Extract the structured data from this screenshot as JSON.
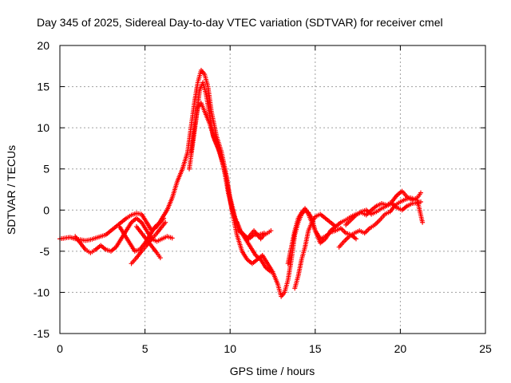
{
  "chart_data": {
    "type": "scatter",
    "title": "Day 345 of 2025, Sidereal Day-to-day VTEC variation (SDTVAR) for receiver cmel",
    "xlabel": "GPS time / hours",
    "ylabel": "SDTVAR / TECUs",
    "xlim": [
      0,
      25
    ],
    "ylim": [
      -15,
      20
    ],
    "xticks": [
      0,
      5,
      10,
      15,
      20,
      25
    ],
    "yticks": [
      -15,
      -10,
      -5,
      0,
      5,
      10,
      15,
      20
    ],
    "grid": true,
    "marker": "+",
    "color": "#ff0000",
    "series": [
      {
        "name": "s1",
        "x": [
          0.0,
          0.3,
          0.6,
          0.9,
          1.2,
          1.5,
          1.8,
          2.1,
          2.4,
          2.7,
          3.0,
          3.3,
          3.6,
          3.9,
          4.2,
          4.5,
          4.8,
          5.1,
          5.4,
          5.7,
          6.0,
          6.3,
          6.6,
          6.9,
          7.2,
          7.5,
          7.7,
          7.9,
          8.1,
          8.3,
          8.5,
          8.7,
          8.9,
          9.2,
          9.5,
          9.8,
          10.1,
          10.4,
          10.7,
          11.0,
          11.3,
          11.6,
          11.9,
          12.2,
          12.5,
          12.8,
          13.0,
          13.2,
          13.4,
          13.6,
          13.8,
          14.0,
          14.2,
          14.4,
          14.6,
          14.8,
          15.0,
          15.3,
          15.6,
          15.9,
          16.2,
          16.5,
          16.8,
          17.1,
          17.4,
          17.7,
          18.0,
          18.3,
          18.6,
          18.9,
          19.2,
          19.5,
          19.8,
          20.1,
          20.4,
          20.7,
          21.0,
          21.2
        ],
        "y": [
          -3.5,
          -3.4,
          -3.3,
          -3.5,
          -3.6,
          -3.7,
          -3.6,
          -3.4,
          -3.2,
          -3.0,
          -2.5,
          -2.0,
          -1.5,
          -1.0,
          -0.6,
          -0.4,
          -0.5,
          -1.5,
          -2.5,
          -2.0,
          -1.0,
          0.0,
          1.5,
          3.5,
          5.0,
          7.0,
          10.0,
          13.0,
          15.5,
          17.0,
          16.5,
          15.0,
          12.0,
          9.0,
          7.0,
          4.0,
          0.0,
          -3.0,
          -5.0,
          -6.0,
          -6.5,
          -6.0,
          -5.5,
          -6.5,
          -7.5,
          -9.0,
          -10.5,
          -10.0,
          -8.5,
          -6.0,
          -3.0,
          -1.5,
          -0.5,
          0.0,
          -0.3,
          -1.0,
          -2.5,
          -4.0,
          -3.5,
          -2.5,
          -2.0,
          -1.5,
          -1.2,
          -0.8,
          -0.5,
          -0.3,
          -0.6,
          0.0,
          0.5,
          0.8,
          0.6,
          1.0,
          1.8,
          2.3,
          1.6,
          1.2,
          1.5,
          2.1
        ]
      },
      {
        "name": "s2",
        "x": [
          0.9,
          1.2,
          1.5,
          1.8,
          2.1,
          2.4,
          2.7,
          3.0,
          3.3,
          3.6,
          3.9,
          4.2,
          4.5,
          4.8,
          5.1,
          5.4,
          5.7,
          6.0,
          6.3,
          6.6
        ],
        "y": [
          -3.2,
          -4.0,
          -4.8,
          -5.2,
          -4.8,
          -4.3,
          -4.8,
          -5.0,
          -4.5,
          -3.5,
          -2.5,
          -1.5,
          -1.0,
          -1.5,
          -2.5,
          -3.5,
          -3.8,
          -3.5,
          -3.2,
          -3.4
        ]
      },
      {
        "name": "s3",
        "x": [
          3.5,
          3.8,
          4.1,
          4.4,
          4.7,
          5.0,
          5.3,
          5.6,
          5.9,
          6.1
        ],
        "y": [
          -2.0,
          -3.0,
          -4.0,
          -5.0,
          -4.8,
          -4.0,
          -3.0,
          -2.0,
          -1.5,
          -1.0
        ]
      },
      {
        "name": "s4",
        "x": [
          4.2,
          4.5,
          4.8,
          5.1,
          5.4,
          5.7,
          6.0,
          6.2
        ],
        "y": [
          -6.5,
          -5.8,
          -5.0,
          -4.3,
          -3.5,
          -2.8,
          -2.0,
          -1.5
        ]
      },
      {
        "name": "s5",
        "x": [
          4.5,
          4.8,
          5.1,
          5.4,
          5.7,
          5.9
        ],
        "y": [
          -2.0,
          -2.8,
          -3.6,
          -4.4,
          -5.2,
          -5.8
        ]
      },
      {
        "name": "s6",
        "x": [
          7.7,
          7.9,
          8.1,
          8.3,
          8.5,
          8.8,
          9.1,
          9.4,
          9.7,
          10.0,
          10.3,
          10.6,
          10.9,
          11.2,
          11.5,
          11.8,
          12.1,
          12.4
        ],
        "y": [
          7.0,
          10.0,
          12.5,
          13.0,
          12.0,
          10.5,
          8.5,
          7.0,
          4.5,
          1.5,
          -1.0,
          -2.5,
          -3.5,
          -4.5,
          -5.5,
          -6.0,
          -7.0,
          -7.5
        ]
      },
      {
        "name": "s7",
        "x": [
          7.6,
          7.8,
          8.0,
          8.2,
          8.4,
          8.6,
          8.8,
          9.0,
          9.3,
          9.6,
          9.9,
          10.2,
          10.5,
          10.8,
          11.1,
          11.4,
          11.7,
          12.0
        ],
        "y": [
          5.0,
          8.0,
          11.0,
          14.5,
          15.5,
          14.0,
          11.5,
          9.0,
          7.5,
          5.5,
          2.0,
          -0.5,
          -2.5,
          -3.0,
          -3.5,
          -3.0,
          -3.0,
          -2.8
        ]
      },
      {
        "name": "s8",
        "x": [
          10.4,
          10.6,
          10.8,
          11.0,
          11.2,
          11.4,
          11.6,
          11.8,
          12.0,
          12.2,
          12.4
        ],
        "y": [
          -1.5,
          -2.5,
          -3.0,
          -3.5,
          -3.0,
          -2.5,
          -3.0,
          -3.5,
          -3.0,
          -2.8,
          -2.5
        ]
      },
      {
        "name": "s9",
        "x": [
          13.4,
          13.6,
          13.8,
          14.0,
          14.2,
          14.4,
          14.6,
          14.8,
          15.0,
          15.3,
          15.6,
          15.9,
          16.2,
          16.5,
          16.8,
          17.1,
          17.4
        ],
        "y": [
          -6.5,
          -4.5,
          -2.5,
          -1.0,
          -0.3,
          0.2,
          -0.5,
          -1.5,
          -2.5,
          -3.5,
          -3.2,
          -2.7,
          -2.5,
          -2.2,
          -2.8,
          -3.0,
          -3.5
        ]
      },
      {
        "name": "s10",
        "x": [
          13.8,
          14.0,
          14.2,
          14.4,
          14.6,
          14.8,
          15.0,
          15.3,
          15.6,
          15.9,
          16.2
        ],
        "y": [
          -9.5,
          -8.0,
          -6.0,
          -4.5,
          -2.5,
          -1.5,
          -0.8,
          -0.5,
          -1.0,
          -1.5,
          -2.0
        ]
      },
      {
        "name": "s11",
        "x": [
          16.4,
          16.7,
          17.0,
          17.3,
          17.6,
          17.9,
          18.2,
          18.5,
          18.8,
          19.1,
          19.4,
          19.7,
          20.0,
          20.3,
          20.6,
          21.0,
          21.3
        ],
        "y": [
          -4.5,
          -3.8,
          -3.2,
          -2.8,
          -2.5,
          -2.8,
          -2.2,
          -1.8,
          -1.2,
          -0.5,
          -0.2,
          0.6,
          1.0,
          1.3,
          1.5,
          1.2,
          -1.5
        ]
      },
      {
        "name": "s12",
        "x": [
          16.8,
          17.1,
          17.4,
          17.7,
          18.0,
          18.3,
          18.6,
          18.9,
          19.2,
          19.5,
          19.8,
          20.1,
          20.4,
          20.7,
          21.0,
          21.2
        ],
        "y": [
          -1.8,
          -1.2,
          -0.6,
          -0.2,
          0.0,
          -0.5,
          -0.2,
          0.2,
          0.5,
          0.8,
          0.3,
          0.0,
          0.5,
          0.8,
          0.9,
          1.0
        ]
      }
    ]
  }
}
